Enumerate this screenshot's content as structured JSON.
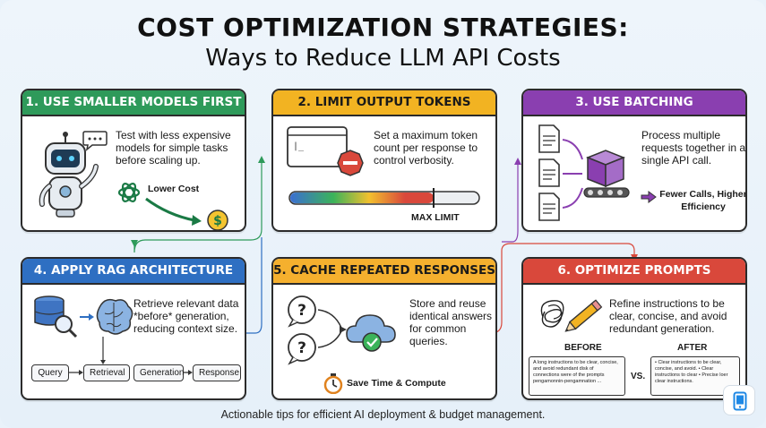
{
  "title": {
    "line1": "COST OPTIMIZATION STRATEGIES:",
    "line2": "Ways to Reduce LLM API Costs"
  },
  "colors": {
    "card1": "#2e9a5a",
    "card2": "#f2b322",
    "card3": "#8a3fb0",
    "card4": "#2e6fc2",
    "card5": "#f5b02e",
    "card6": "#d9483b"
  },
  "cards": [
    {
      "heading": "1. USE SMALLER MODELS FIRST",
      "text": "Test with less expensive models for simple tasks before scaling up.",
      "label": "Lower Cost",
      "icons": [
        "robot-icon",
        "speech-bubble-icon",
        "openai-logo-icon",
        "dollar-coin-icon"
      ]
    },
    {
      "heading": "2. LIMIT OUTPUT TOKENS",
      "text": "Set a maximum token count per response to control verbosity.",
      "label": "MAX LIMIT",
      "icons": [
        "terminal-window-icon",
        "stop-sign-icon",
        "token-bar-gauge"
      ]
    },
    {
      "heading": "3. USE BATCHING",
      "text": "Process multiple requests together in a single API call.",
      "label": "Fewer Calls, Higher Efficiency",
      "icons": [
        "document-icon",
        "package-box-icon",
        "conveyor-icon"
      ]
    },
    {
      "heading": "4. APPLY RAG ARCHITECTURE",
      "text": "Retrieve relevant data *before* generation, reducing context size.",
      "flow": [
        "Query",
        "Retrieval",
        "Generation",
        "Response"
      ],
      "icons": [
        "database-search-icon",
        "brain-icon"
      ]
    },
    {
      "heading": "5. CACHE REPEATED RESPONSES",
      "text": "Store and reuse identical answers for common queries.",
      "label": "Save Time & Compute",
      "icons": [
        "question-bubble-icon",
        "cloud-check-icon",
        "stopwatch-icon"
      ]
    },
    {
      "heading": "6. OPTIMIZE PROMPTS",
      "text": "Refine instructions to be clear, concise, and avoid redundant generation.",
      "before_label": "BEFORE",
      "after_label": "AFTER",
      "vs_label": "VS.",
      "before_text": "A long instructions to be clear, concise, and avoid redundant disk of connections were of the prompts pengamonnin-pengamnation ...",
      "after_text": "• Clear instructions to be clear, concise, and avoid. • Clear instructions to clear • Precise loer clear instructions.",
      "icons": [
        "scribble-icon",
        "pencil-icon"
      ]
    }
  ],
  "footer": "Actionable tips for efficient AI deployment & budget management.",
  "corner_button": {
    "icon": "mobile-device-icon"
  }
}
